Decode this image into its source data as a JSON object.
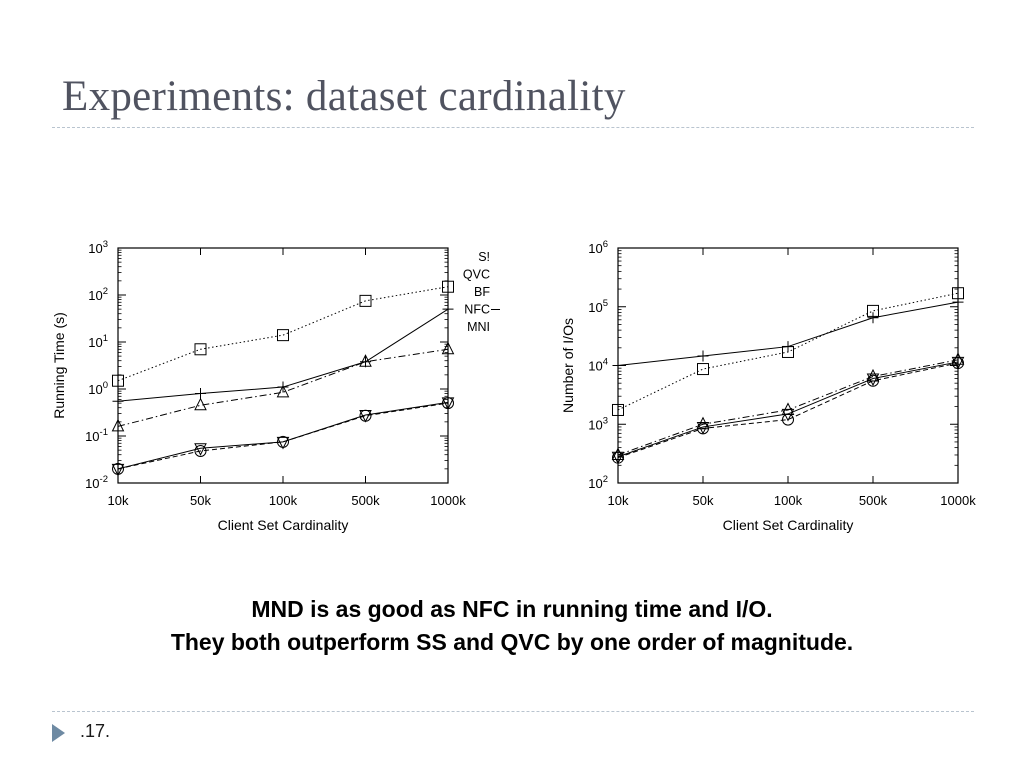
{
  "slide": {
    "title": "Experiments: dataset cardinality",
    "caption_line1": "MND is as good as NFC in running time and I/O.",
    "caption_line2": "They both outperform SS and QVC by one order of magnitude.",
    "page_number": ".17."
  },
  "colors": {
    "title": "#505360",
    "rule": "#b9c4cf",
    "footer_arrow": "#6e8aa3",
    "series": "#000000"
  },
  "chart_data": [
    {
      "type": "line",
      "title": "",
      "xlabel": "Client Set Cardinality",
      "ylabel": "Running Time (s)",
      "yscale": "log",
      "ylim": [
        0.01,
        1000
      ],
      "categories": [
        "10k",
        "50k",
        "100k",
        "500k",
        "1000k"
      ],
      "y_ticks": [
        {
          "value": 0.01,
          "base": "10",
          "exp": "-2"
        },
        {
          "value": 0.1,
          "base": "10",
          "exp": "-1"
        },
        {
          "value": 1,
          "base": "10",
          "exp": "0"
        },
        {
          "value": 10,
          "base": "10",
          "exp": "1"
        },
        {
          "value": 100,
          "base": "10",
          "exp": "2"
        },
        {
          "value": 1000,
          "base": "10",
          "exp": "3"
        }
      ],
      "legend": {
        "position": "right, cropped",
        "entries": [
          "SS",
          "QVC",
          "BF",
          "NFC",
          "MND"
        ],
        "visible_text": [
          "S!",
          "QVC",
          "BF",
          "NFC",
          "MNI"
        ]
      },
      "grid": false,
      "series": [
        {
          "name": "SS",
          "marker": "square",
          "dash": "dotted",
          "values": [
            1.5,
            7.0,
            14,
            75,
            150
          ]
        },
        {
          "name": "QVC",
          "marker": "triangle",
          "dash": "dashdot",
          "values": [
            0.16,
            0.45,
            0.85,
            3.8,
            7.0
          ]
        },
        {
          "name": "BF",
          "marker": "triangle-down",
          "dash": "solid",
          "values": [
            0.02,
            0.055,
            0.075,
            0.28,
            0.52
          ]
        },
        {
          "name": "NFC",
          "marker": "plus",
          "dash": "solid",
          "values": [
            0.55,
            0.8,
            1.1,
            3.8,
            50
          ]
        },
        {
          "name": "MND",
          "marker": "circle",
          "dash": "dashed",
          "values": [
            0.02,
            0.048,
            0.075,
            0.27,
            0.5
          ]
        }
      ]
    },
    {
      "type": "line",
      "title": "",
      "xlabel": "Client Set Cardinality",
      "ylabel": "Number of I/Os",
      "yscale": "log",
      "ylim": [
        100,
        1000000
      ],
      "categories": [
        "10k",
        "50k",
        "100k",
        "500k",
        "1000k"
      ],
      "y_ticks": [
        {
          "value": 100,
          "base": "10",
          "exp": "2"
        },
        {
          "value": 1000,
          "base": "10",
          "exp": "3"
        },
        {
          "value": 10000,
          "base": "10",
          "exp": "4"
        },
        {
          "value": 100000,
          "base": "10",
          "exp": "5"
        },
        {
          "value": 1000000,
          "base": "10",
          "exp": "6"
        }
      ],
      "grid": false,
      "series": [
        {
          "name": "SS",
          "marker": "square",
          "dash": "dotted",
          "values": [
            1750,
            8700,
            17000,
            85000,
            170000
          ]
        },
        {
          "name": "QVC",
          "marker": "triangle",
          "dash": "dashdot",
          "values": [
            300,
            1000,
            1750,
            6500,
            12500
          ]
        },
        {
          "name": "BF",
          "marker": "triangle-down",
          "dash": "solid",
          "values": [
            280,
            900,
            1500,
            6000,
            11500
          ]
        },
        {
          "name": "NFC",
          "marker": "plus",
          "dash": "solid",
          "values": [
            10000,
            14500,
            21000,
            65000,
            120000
          ]
        },
        {
          "name": "MND",
          "marker": "circle",
          "dash": "dashed",
          "values": [
            270,
            850,
            1200,
            5500,
            11000
          ]
        }
      ]
    }
  ]
}
